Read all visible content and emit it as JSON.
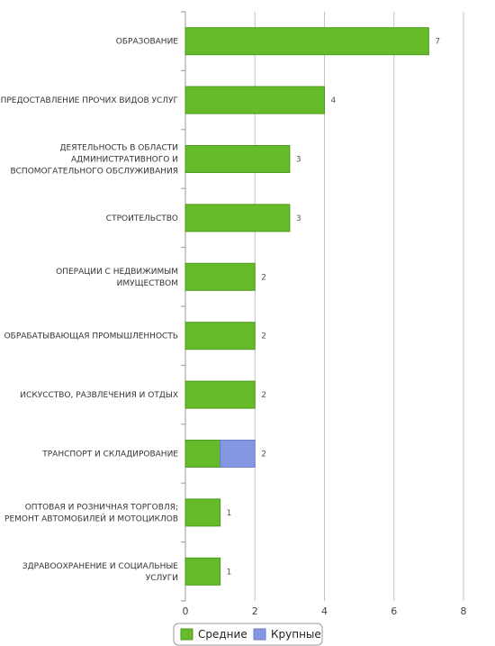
{
  "chart_data": {
    "type": "bar",
    "orientation": "horizontal",
    "stacked": true,
    "categories": [
      [
        "ОБРАЗОВАНИЕ"
      ],
      [
        "ПРЕДОСТАВЛЕНИЕ ПРОЧИХ ВИДОВ УСЛУГ"
      ],
      [
        "ДЕЯТЕЛЬНОСТЬ В ОБЛАСТИ",
        "АДМИНИСТРАТИВНОГО И",
        "ВСПОМОГАТЕЛЬНОГО ОБСЛУЖИВАНИЯ"
      ],
      [
        "СТРОИТЕЛЬСТВО"
      ],
      [
        "ОПЕРАЦИИ С НЕДВИЖИМЫМ",
        "ИМУЩЕСТВОМ"
      ],
      [
        "ОБРАБАТЫВАЮЩАЯ ПРОМЫШЛЕННОСТЬ"
      ],
      [
        "ИСКУССТВО, РАЗВЛЕЧЕНИЯ И ОТДЫХ"
      ],
      [
        "ТРАНСПОРТ И СКЛАДИРОВАНИЕ"
      ],
      [
        "ОПТОВАЯ И РОЗНИЧНАЯ ТОРГОВЛЯ;",
        "РЕМОНТ АВТОМОБИЛЕЙ И МОТОЦИКЛОВ"
      ],
      [
        "ЗДРАВООХРАНЕНИЕ И СОЦИАЛЬНЫЕ",
        "УСЛУГИ"
      ]
    ],
    "series": [
      {
        "name": "Средние",
        "color": "#66bb2b",
        "values": [
          7,
          4,
          3,
          3,
          2,
          2,
          2,
          1,
          1,
          1
        ]
      },
      {
        "name": "Крупные",
        "color": "#8497e0",
        "values": [
          0,
          0,
          0,
          0,
          0,
          0,
          0,
          1,
          0,
          0
        ]
      }
    ],
    "totals": [
      "7",
      "4",
      "3",
      "3",
      "2",
      "2",
      "2",
      "2",
      "1",
      "1"
    ],
    "xlim": [
      0,
      8
    ],
    "xticks": [
      "0",
      "2",
      "4",
      "6",
      "8"
    ],
    "grid": true,
    "legend_position": "bottom-center"
  }
}
